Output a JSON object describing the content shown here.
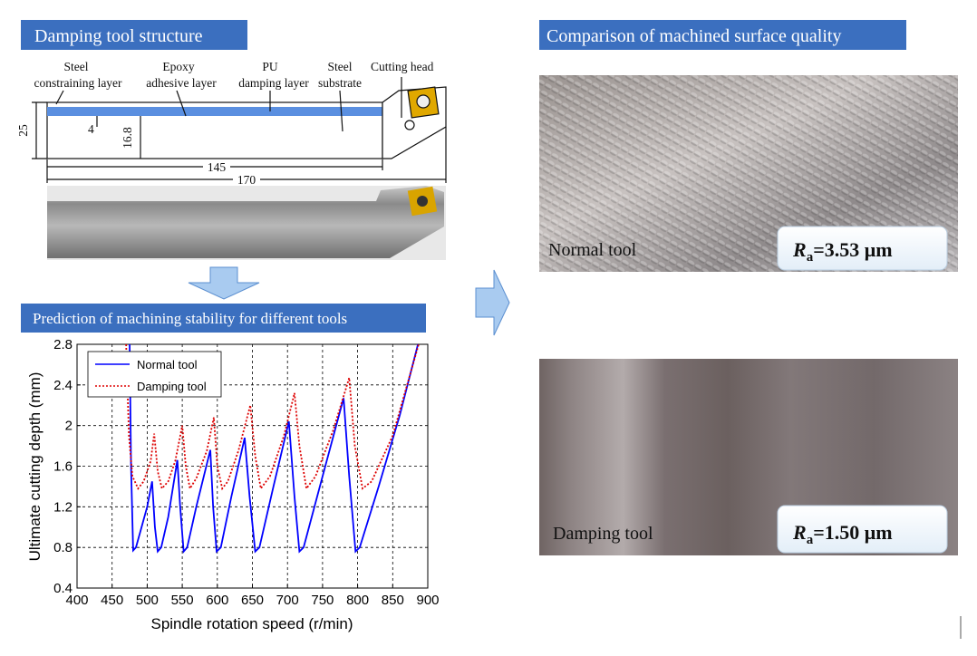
{
  "structure_header": "Damping tool structure",
  "diagram": {
    "labels": [
      "Steel",
      "constraining layer",
      "Epoxy",
      "adhesive layer",
      "PU",
      "damping layer",
      "Steel",
      "substrate",
      "Cutting head"
    ],
    "dimensions": [
      "25",
      "4",
      "16.8",
      "145",
      "170"
    ]
  },
  "prediction_header": "Prediction of machining stability for different tools",
  "comparison_header": "Comparison of machined surface quality",
  "photos": [
    {
      "label": "Normal tool",
      "ra": {
        "symbol": "R",
        "subscript": "a",
        "value": "=3.53 μm"
      }
    },
    {
      "label": "Damping tool",
      "ra": {
        "symbol": "R",
        "subscript": "a",
        "value": "=1.50 μm"
      }
    }
  ],
  "chart_data": {
    "type": "line",
    "x_label": "Spindle rotation speed (r/min)",
    "y_label": "Ultimate cutting depth (mm)",
    "xlim": [
      400,
      900
    ],
    "ylim": [
      0.4,
      2.8
    ],
    "xticks": [
      400,
      450,
      500,
      550,
      600,
      650,
      700,
      750,
      800,
      850,
      900
    ],
    "yticks": [
      0.4,
      0.8,
      1.2,
      1.6,
      2,
      2.4,
      2.8
    ],
    "grid": true,
    "legend": "upper left",
    "series": [
      {
        "name": "Normal tool",
        "color": "#0000ff",
        "style": "solid",
        "x": [
          475,
          477,
          480,
          484,
          490,
          500,
          507,
          511,
          515,
          520,
          530,
          543,
          547,
          552,
          557,
          570,
          590,
          594,
          599,
          605,
          620,
          639,
          646,
          654,
          660,
          680,
          702,
          710,
          717,
          723,
          750,
          780,
          788,
          797,
          803,
          830,
          860,
          886
        ],
        "values": [
          2.8,
          1.6,
          0.77,
          0.8,
          0.95,
          1.2,
          1.45,
          1.0,
          0.76,
          0.8,
          1.1,
          1.66,
          1.2,
          0.76,
          0.8,
          1.2,
          1.76,
          1.2,
          0.76,
          0.8,
          1.3,
          1.88,
          1.3,
          0.76,
          0.8,
          1.4,
          2.04,
          1.3,
          0.76,
          0.8,
          1.5,
          2.27,
          1.5,
          0.76,
          0.8,
          1.4,
          2.1,
          2.8
        ]
      },
      {
        "name": "Damping tool",
        "color": "#dd0000",
        "style": "dotted",
        "x": [
          470,
          474,
          479,
          487,
          495,
          505,
          510,
          515,
          521,
          530,
          540,
          550,
          555,
          561,
          570,
          585,
          595,
          600,
          607,
          615,
          630,
          647,
          654,
          662,
          675,
          695,
          710,
          717,
          727,
          740,
          765,
          788,
          796,
          807,
          820,
          850,
          887
        ],
        "values": [
          2.8,
          1.9,
          1.5,
          1.38,
          1.45,
          1.65,
          1.92,
          1.55,
          1.38,
          1.45,
          1.65,
          2.0,
          1.6,
          1.38,
          1.48,
          1.75,
          2.08,
          1.6,
          1.38,
          1.45,
          1.75,
          2.2,
          1.7,
          1.38,
          1.5,
          1.9,
          2.32,
          1.8,
          1.38,
          1.5,
          1.95,
          2.47,
          1.8,
          1.38,
          1.45,
          1.9,
          2.8
        ]
      }
    ]
  }
}
